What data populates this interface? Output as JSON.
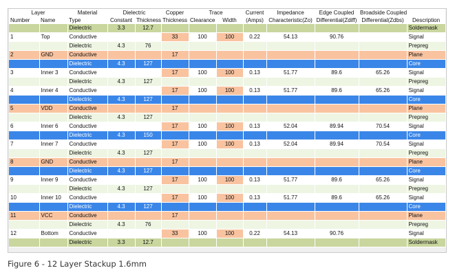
{
  "header": {
    "group": [
      "Layer",
      "Material",
      "Dielectric",
      "Copper",
      "Trace",
      "Current",
      "Impedance",
      "Edge Coupled",
      "Broadside Coupled",
      ""
    ],
    "cols": [
      "Number",
      "Name",
      "Type",
      "Constant",
      "Thickness",
      "Thickness",
      "Clearance",
      "Width",
      "(Amps)",
      "Characteristic(Zo)",
      "Differential(Zdiff)",
      "Differential(Zdbs)",
      "Description"
    ]
  },
  "rows": [
    {
      "kind": "soldermask",
      "cells": [
        "",
        "",
        "Dielectric",
        "3.3",
        "12.7",
        "",
        "",
        "",
        "",
        "",
        "",
        "",
        "Soldermask"
      ]
    },
    {
      "kind": "signal",
      "cells": [
        "1",
        "Top",
        "Conductive",
        "",
        "",
        "33",
        "100",
        "100",
        "0.22",
        "54.13",
        "90.76",
        "",
        "Signal"
      ]
    },
    {
      "kind": "prepreg",
      "cells": [
        "",
        "",
        "Dielectric",
        "4.3",
        "76",
        "",
        "",
        "",
        "",
        "",
        "",
        "",
        "Prepreg"
      ]
    },
    {
      "kind": "plane",
      "cells": [
        "2",
        "GND",
        "Conductive",
        "",
        "",
        "17",
        "",
        "",
        "",
        "",
        "",
        "",
        "Plane"
      ]
    },
    {
      "kind": "core",
      "cells": [
        "",
        "",
        "Dielectric",
        "4.3",
        "127",
        "",
        "",
        "",
        "",
        "",
        "",
        "",
        "Core"
      ]
    },
    {
      "kind": "signal",
      "cells": [
        "3",
        "Inner 3",
        "Conductive",
        "",
        "",
        "17",
        "100",
        "100",
        "0.13",
        "51.77",
        "89.6",
        "65.26",
        "Signal"
      ]
    },
    {
      "kind": "prepreg",
      "cells": [
        "",
        "",
        "Dielectric",
        "4.3",
        "127",
        "",
        "",
        "",
        "",
        "",
        "",
        "",
        "Prepreg"
      ]
    },
    {
      "kind": "signal",
      "cells": [
        "4",
        "Inner 4",
        "Conductive",
        "",
        "",
        "17",
        "100",
        "100",
        "0.13",
        "51.77",
        "89.6",
        "65.26",
        "Signal"
      ]
    },
    {
      "kind": "core",
      "cells": [
        "",
        "",
        "Dielectric",
        "4.3",
        "127",
        "",
        "",
        "",
        "",
        "",
        "",
        "",
        "Core"
      ]
    },
    {
      "kind": "plane",
      "cells": [
        "5",
        "VDD",
        "Conductive",
        "",
        "",
        "17",
        "",
        "",
        "",
        "",
        "",
        "",
        "Plane"
      ]
    },
    {
      "kind": "prepreg",
      "cells": [
        "",
        "",
        "Dielectric",
        "4.3",
        "127",
        "",
        "",
        "",
        "",
        "",
        "",
        "",
        "Prepreg"
      ]
    },
    {
      "kind": "signal",
      "cells": [
        "6",
        "Inner 6",
        "Conductive",
        "",
        "",
        "17",
        "100",
        "100",
        "0.13",
        "52.04",
        "89.94",
        "70.54",
        "Signal"
      ]
    },
    {
      "kind": "core",
      "cells": [
        "",
        "",
        "Dielectric",
        "4.3",
        "150",
        "",
        "",
        "",
        "",
        "",
        "",
        "",
        "Core"
      ]
    },
    {
      "kind": "signal",
      "cells": [
        "7",
        "Inner 7",
        "Conductive",
        "",
        "",
        "17",
        "100",
        "100",
        "0.13",
        "52.04",
        "89.94",
        "70.54",
        "Signal"
      ]
    },
    {
      "kind": "prepreg",
      "cells": [
        "",
        "",
        "Dielectric",
        "4.3",
        "127",
        "",
        "",
        "",
        "",
        "",
        "",
        "",
        "Prepreg"
      ]
    },
    {
      "kind": "plane",
      "cells": [
        "8",
        "GND",
        "Conductive",
        "",
        "",
        "17",
        "",
        "",
        "",
        "",
        "",
        "",
        "Plane"
      ]
    },
    {
      "kind": "core",
      "cells": [
        "",
        "",
        "Dielectric",
        "4.3",
        "127",
        "",
        "",
        "",
        "",
        "",
        "",
        "",
        "Core"
      ]
    },
    {
      "kind": "signal",
      "cells": [
        "9",
        "Inner 9",
        "Conductive",
        "",
        "",
        "17",
        "100",
        "100",
        "0.13",
        "51.77",
        "89.6",
        "65.26",
        "Signal"
      ]
    },
    {
      "kind": "prepreg",
      "cells": [
        "",
        "",
        "Dielectric",
        "4.3",
        "127",
        "",
        "",
        "",
        "",
        "",
        "",
        "",
        "Prepreg"
      ]
    },
    {
      "kind": "signal",
      "cells": [
        "10",
        "Inner 10",
        "Conductive",
        "",
        "",
        "17",
        "100",
        "100",
        "0.13",
        "51.77",
        "89.6",
        "65.26",
        "Signal"
      ]
    },
    {
      "kind": "core",
      "cells": [
        "",
        "",
        "Dielectric",
        "4.3",
        "127",
        "",
        "",
        "",
        "",
        "",
        "",
        "",
        "Core"
      ]
    },
    {
      "kind": "plane",
      "cells": [
        "11",
        "VCC",
        "Conductive",
        "",
        "",
        "17",
        "",
        "",
        "",
        "",
        "",
        "",
        "Plane"
      ]
    },
    {
      "kind": "prepreg",
      "cells": [
        "",
        "",
        "Dielectric",
        "4.3",
        "76",
        "",
        "",
        "",
        "",
        "",
        "",
        "",
        "Prepreg"
      ]
    },
    {
      "kind": "signal",
      "cells": [
        "12",
        "Bottom",
        "Conductive",
        "",
        "",
        "33",
        "100",
        "100",
        "0.22",
        "54.13",
        "90.76",
        "",
        "Signal"
      ]
    },
    {
      "kind": "soldermask",
      "cells": [
        "",
        "",
        "Dielectric",
        "3.3",
        "12.7",
        "",
        "",
        "",
        "",
        "",
        "",
        "",
        "Soldermask"
      ]
    }
  ],
  "caption": "Figure 6 - 12 Layer Stackup 1.6mm",
  "colors": {
    "soldermask": "#c9d69e",
    "prepreg": "#eef5e3",
    "plane": "#f9c3a0",
    "core": "#3a86e8",
    "signal_highlight": "#f9c3a0"
  }
}
